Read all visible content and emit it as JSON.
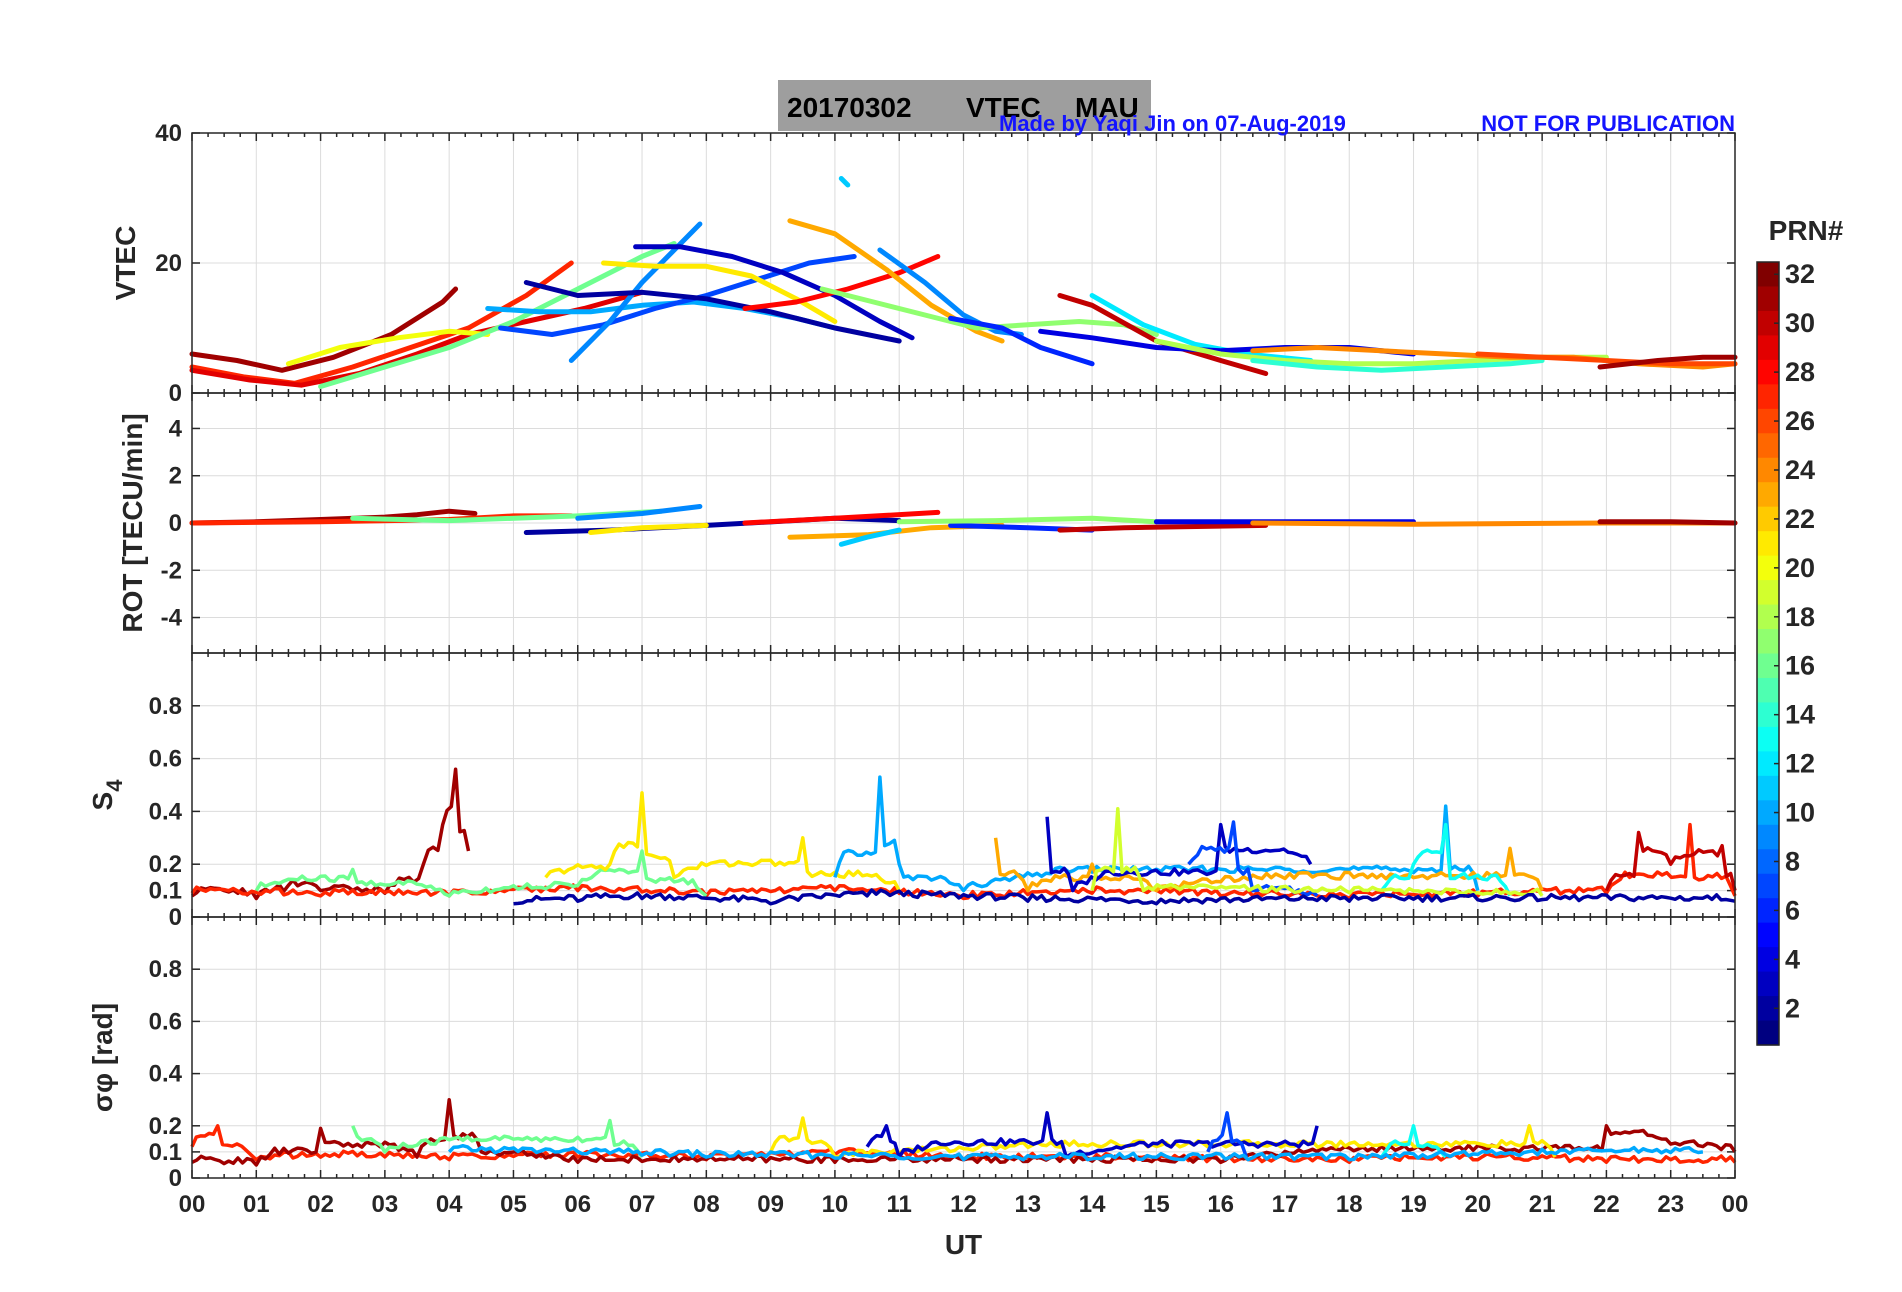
{
  "header": {
    "date": "20170302",
    "product": "VTEC",
    "station": "MAU",
    "credit": "Made by Yaqi Jin on 07-Aug-2019",
    "notice": "NOT FOR PUBLICATION",
    "box_color": "#9e9e9e"
  },
  "colorbar": {
    "title": "PRN#",
    "ticks": [
      "2",
      "4",
      "6",
      "8",
      "10",
      "12",
      "14",
      "16",
      "18",
      "20",
      "22",
      "24",
      "26",
      "28",
      "30",
      "32"
    ],
    "range": [
      1,
      32
    ],
    "colormap": "jet"
  },
  "chart_data": [
    {
      "type": "line",
      "panel": "vtec",
      "ylabel": "VTEC",
      "ylim": [
        0,
        40
      ],
      "yticks": [
        "0",
        "20",
        "40"
      ],
      "yticks_values": [
        0,
        20,
        40
      ],
      "series": [
        {
          "prn": 31,
          "x": [
            0,
            0.7,
            1.4,
            2.2,
            3.1,
            3.9,
            4.1
          ],
          "y": [
            6,
            5,
            3.5,
            5.5,
            9,
            14,
            16
          ]
        },
        {
          "prn": 27,
          "x": [
            0,
            0.8,
            1.6,
            2.5,
            3.4,
            4.3,
            5.2,
            5.9
          ],
          "y": [
            4,
            2.5,
            1.5,
            4,
            7,
            10,
            15,
            20
          ]
        },
        {
          "prn": 29,
          "x": [
            0,
            0.9,
            1.7,
            2.6,
            3.5,
            4.3,
            5.2,
            6.1,
            7.0
          ],
          "y": [
            3.5,
            2,
            1.2,
            3,
            6,
            9,
            11,
            13,
            15.5
          ]
        },
        {
          "prn": 20,
          "x": [
            1.5,
            2.3,
            3.2,
            4.0,
            4.6
          ],
          "y": [
            4.5,
            7,
            8.5,
            9.5,
            9
          ]
        },
        {
          "prn": 16,
          "x": [
            2.0,
            3.0,
            4.0,
            5.0,
            6.0,
            7.0,
            7.5
          ],
          "y": [
            1,
            4,
            7,
            11,
            16,
            21,
            23
          ]
        },
        {
          "prn": 10,
          "x": [
            4.6,
            5.4,
            6.2,
            7.0,
            7.8,
            8.6,
            9.4,
            10.0
          ],
          "y": [
            13,
            12.5,
            12.5,
            13.5,
            14,
            13,
            11.5,
            10
          ]
        },
        {
          "prn": 7,
          "x": [
            4.8,
            5.6,
            6.4,
            7.2,
            8.0,
            8.8,
            9.6,
            10.3
          ],
          "y": [
            10,
            9,
            10.5,
            13,
            15,
            17.5,
            20,
            21
          ]
        },
        {
          "prn": 9,
          "x": [
            5.9,
            6.5,
            7.0,
            7.5,
            7.9
          ],
          "y": [
            5,
            11,
            17,
            22,
            26
          ]
        },
        {
          "prn": 2,
          "x": [
            5.2,
            6.0,
            7.0,
            8.0,
            9.0,
            10.0,
            11.0
          ],
          "y": [
            17,
            15,
            15.5,
            14.5,
            12.5,
            10,
            8
          ]
        },
        {
          "prn": 3,
          "x": [
            6.9,
            7.6,
            8.4,
            9.2,
            10.0,
            10.7,
            11.2
          ],
          "y": [
            22.5,
            22.5,
            21,
            18.5,
            15,
            11,
            8.5
          ]
        },
        {
          "prn": 21,
          "x": [
            6.4,
            7.2,
            8.0,
            8.7,
            9.4,
            10.0
          ],
          "y": [
            20,
            19.5,
            19.5,
            18,
            14.5,
            11
          ]
        },
        {
          "prn": 28,
          "x": [
            8.6,
            9.4,
            10.2,
            11.0,
            11.6
          ],
          "y": [
            13,
            14,
            16,
            18.5,
            21
          ]
        },
        {
          "prn": 23,
          "x": [
            9.3,
            10.0,
            10.8,
            11.5,
            12.2,
            12.6
          ],
          "y": [
            26.5,
            24.5,
            19,
            13.5,
            9.5,
            8
          ]
        },
        {
          "prn": 11,
          "x": [
            10.1,
            10.2
          ],
          "y": [
            33,
            32
          ]
        },
        {
          "prn": 9,
          "x": [
            10.7,
            11.4,
            12.0,
            12.5,
            12.9
          ],
          "y": [
            22,
            17,
            12,
            9.5,
            9
          ]
        },
        {
          "prn": 17,
          "x": [
            9.8,
            10.6,
            11.4,
            12.2,
            13.0,
            13.8,
            14.5,
            15.0
          ],
          "y": [
            16,
            14,
            12,
            10,
            10.5,
            11,
            10.5,
            9
          ]
        },
        {
          "prn": 6,
          "x": [
            11.8,
            12.6,
            13.2,
            14.0
          ],
          "y": [
            11.5,
            10,
            7,
            4.5
          ]
        },
        {
          "prn": 12,
          "x": [
            14.0,
            14.8,
            15.6,
            16.4,
            17.4
          ],
          "y": [
            15,
            10.5,
            7.5,
            6,
            5
          ]
        },
        {
          "prn": 30,
          "x": [
            13.5,
            14.0,
            15.0,
            16.0,
            16.7
          ],
          "y": [
            15,
            13.5,
            8,
            5,
            3
          ]
        },
        {
          "prn": 4,
          "x": [
            13.2,
            14.0,
            15.0,
            16.0,
            17.0,
            18.0,
            19.0
          ],
          "y": [
            9.5,
            8.5,
            7,
            6.5,
            7,
            7,
            6
          ]
        },
        {
          "prn": 18,
          "x": [
            15.0,
            16.0,
            17.0,
            18.0,
            19.0,
            20.0,
            21.0,
            22.0
          ],
          "y": [
            8,
            6,
            5,
            4.5,
            4.5,
            5,
            5.5,
            5.5
          ]
        },
        {
          "prn": 14,
          "x": [
            16.5,
            17.5,
            18.5,
            19.5,
            20.5,
            21.0
          ],
          "y": [
            5,
            4,
            3.5,
            4,
            4.5,
            5
          ]
        },
        {
          "prn": 24,
          "x": [
            16.5,
            17.5,
            18.5,
            19.5,
            20.5,
            21.5,
            22.5,
            23.5,
            24.0
          ],
          "y": [
            6.5,
            7,
            6.5,
            6,
            5.5,
            5.5,
            4.5,
            4,
            4.5
          ]
        },
        {
          "prn": 26,
          "x": [
            20.0,
            21.0,
            22.0,
            23.0,
            24.0
          ],
          "y": [
            6,
            5.5,
            5,
            4.5,
            4.5
          ]
        },
        {
          "prn": 31,
          "x": [
            21.9,
            22.8,
            23.5,
            24.0
          ],
          "y": [
            4,
            5,
            5.5,
            5.5
          ]
        }
      ]
    },
    {
      "type": "line",
      "panel": "rot",
      "ylabel": "ROT [TECU/min]",
      "ylim": [
        -5.5,
        5.5
      ],
      "yticks": [
        "-4",
        "-2",
        "0",
        "2",
        "4"
      ],
      "yticks_values": [
        -4,
        -2,
        0,
        2,
        4
      ],
      "series": [
        {
          "prn": 31,
          "x": [
            0,
            1,
            2,
            3,
            3.5,
            4.0,
            4.4
          ],
          "y": [
            0,
            0.05,
            0.15,
            0.25,
            0.35,
            0.5,
            0.4
          ]
        },
        {
          "prn": 27,
          "x": [
            0,
            2,
            4,
            5,
            5.9
          ],
          "y": [
            0,
            0.05,
            0.15,
            0.3,
            0.3
          ]
        },
        {
          "prn": 16,
          "x": [
            2.5,
            4,
            6,
            7.3
          ],
          "y": [
            0.2,
            0.1,
            0.3,
            0.5
          ]
        },
        {
          "prn": 9,
          "x": [
            6,
            7,
            7.9
          ],
          "y": [
            0.2,
            0.4,
            0.7
          ]
        },
        {
          "prn": 2,
          "x": [
            5.2,
            6.5,
            8,
            10,
            11
          ],
          "y": [
            -0.4,
            -0.3,
            -0.1,
            0.2,
            0.1
          ]
        },
        {
          "prn": 21,
          "x": [
            6.2,
            7,
            8
          ],
          "y": [
            -0.4,
            -0.2,
            -0.1
          ]
        },
        {
          "prn": 28,
          "x": [
            8.6,
            10,
            11.6
          ],
          "y": [
            0.0,
            0.2,
            0.45
          ]
        },
        {
          "prn": 23,
          "x": [
            9.3,
            10.5,
            11.5,
            12.6
          ],
          "y": [
            -0.6,
            -0.5,
            -0.2,
            -0.1
          ]
        },
        {
          "prn": 11,
          "x": [
            10.1,
            10.5,
            11
          ],
          "y": [
            -0.9,
            -0.6,
            -0.3
          ]
        },
        {
          "prn": 6,
          "x": [
            11.8,
            13,
            14
          ],
          "y": [
            -0.1,
            -0.2,
            -0.3
          ]
        },
        {
          "prn": 30,
          "x": [
            13.5,
            14.5,
            16.7
          ],
          "y": [
            -0.3,
            -0.2,
            -0.1
          ]
        },
        {
          "prn": 17,
          "x": [
            11,
            12.5,
            14,
            15
          ],
          "y": [
            0.05,
            0.1,
            0.2,
            0.05
          ]
        },
        {
          "prn": 4,
          "x": [
            15,
            17,
            19
          ],
          "y": [
            0.05,
            0.05,
            0.05
          ]
        },
        {
          "prn": 24,
          "x": [
            16.5,
            19,
            22,
            24
          ],
          "y": [
            0,
            -0.05,
            0,
            0
          ]
        },
        {
          "prn": 31,
          "x": [
            21.9,
            23,
            24
          ],
          "y": [
            0.05,
            0.05,
            0
          ]
        }
      ]
    },
    {
      "type": "line",
      "panel": "s4",
      "ylabel": "S4",
      "ylim": [
        0,
        1
      ],
      "yticks": [
        "0",
        "0.1",
        "0.2",
        "0.4",
        "0.6",
        "0.8"
      ],
      "yticks_values": [
        0,
        0.1,
        0.2,
        0.4,
        0.6,
        0.8
      ],
      "series": [
        {
          "prn": 31,
          "x": [
            0,
            0.5,
            1,
            1.5,
            2,
            3,
            3.6,
            3.9,
            4.1,
            4.3
          ],
          "y": [
            0.08,
            0.1,
            0.07,
            0.12,
            0.1,
            0.09,
            0.2,
            0.35,
            0.56,
            0.25
          ]
        },
        {
          "prn": 27,
          "x": [
            0,
            2,
            4,
            6,
            8,
            10,
            12,
            14,
            16,
            18,
            20,
            22,
            23.3,
            24
          ],
          "y": [
            0.09,
            0.08,
            0.08,
            0.1,
            0.08,
            0.1,
            0.07,
            0.09,
            0.08,
            0.07,
            0.08,
            0.09,
            0.35,
            0.08
          ]
        },
        {
          "prn": 16,
          "x": [
            1,
            2.5,
            4,
            6,
            7,
            8
          ],
          "y": [
            0.1,
            0.18,
            0.08,
            0.12,
            0.25,
            0.08
          ]
        },
        {
          "prn": 21,
          "x": [
            5.5,
            6.5,
            7.0,
            7.5,
            9.5,
            11
          ],
          "y": [
            0.15,
            0.2,
            0.47,
            0.15,
            0.3,
            0.1
          ]
        },
        {
          "prn": 10,
          "x": [
            10,
            10.7,
            11,
            12,
            19.5,
            20
          ],
          "y": [
            0.15,
            0.53,
            0.2,
            0.1,
            0.42,
            0.1
          ]
        },
        {
          "prn": 23,
          "x": [
            12.5,
            13,
            14,
            15,
            20.5,
            21
          ],
          "y": [
            0.3,
            0.1,
            0.2,
            0.1,
            0.26,
            0.1
          ]
        },
        {
          "prn": 3,
          "x": [
            13.3,
            13.7,
            16,
            17.4
          ],
          "y": [
            0.38,
            0.1,
            0.35,
            0.2
          ]
        },
        {
          "prn": 7,
          "x": [
            15.5,
            16.2,
            16.5,
            17.5
          ],
          "y": [
            0.2,
            0.36,
            0.1,
            0.08
          ]
        },
        {
          "prn": 13,
          "x": [
            18.5,
            19,
            19.5,
            20.5
          ],
          "y": [
            0.1,
            0.2,
            0.35,
            0.08
          ]
        },
        {
          "prn": 19,
          "x": [
            14,
            14.4,
            14.8,
            21
          ],
          "y": [
            0.1,
            0.41,
            0.1,
            0.08
          ]
        },
        {
          "prn": 30,
          "x": [
            22,
            22.5,
            23,
            23.8,
            24
          ],
          "y": [
            0.1,
            0.32,
            0.2,
            0.27,
            0.1
          ]
        },
        {
          "prn": 2,
          "x": [
            5,
            6,
            7,
            9,
            10.5,
            13,
            15,
            18,
            24
          ],
          "y": [
            0.05,
            0.06,
            0.07,
            0.05,
            0.08,
            0.06,
            0.05,
            0.06,
            0.06
          ]
        }
      ]
    },
    {
      "type": "line",
      "panel": "sigma_phi",
      "ylabel": "σφ [rad]",
      "ylim": [
        0,
        1
      ],
      "yticks": [
        "0",
        "0.1",
        "0.2",
        "0.4",
        "0.6",
        "0.8"
      ],
      "yticks_values": [
        0,
        0.1,
        0.2,
        0.4,
        0.6,
        0.8
      ],
      "series": [
        {
          "prn": 27,
          "x": [
            0,
            0.4,
            1,
            2,
            4,
            6,
            8,
            10,
            12,
            14,
            16,
            18,
            20,
            22,
            24
          ],
          "y": [
            0.12,
            0.2,
            0.07,
            0.08,
            0.07,
            0.08,
            0.07,
            0.09,
            0.07,
            0.07,
            0.06,
            0.06,
            0.07,
            0.06,
            0.06
          ]
        },
        {
          "prn": 31,
          "x": [
            0,
            1,
            2,
            3.5,
            4,
            4.5,
            6,
            10,
            16,
            22,
            23,
            24
          ],
          "y": [
            0.06,
            0.05,
            0.19,
            0.08,
            0.3,
            0.1,
            0.06,
            0.06,
            0.06,
            0.2,
            0.13,
            0.1
          ]
        },
        {
          "prn": 16,
          "x": [
            2.5,
            3,
            6.5,
            7
          ],
          "y": [
            0.2,
            0.1,
            0.22,
            0.08
          ]
        },
        {
          "prn": 21,
          "x": [
            9,
            9.5,
            10,
            20.8,
            21.2
          ],
          "y": [
            0.1,
            0.23,
            0.08,
            0.2,
            0.08
          ]
        },
        {
          "prn": 3,
          "x": [
            10.5,
            10.8,
            11,
            13.3,
            13.6,
            17.5
          ],
          "y": [
            0.12,
            0.2,
            0.08,
            0.25,
            0.08,
            0.2
          ]
        },
        {
          "prn": 7,
          "x": [
            15.8,
            16.1,
            16.4
          ],
          "y": [
            0.1,
            0.25,
            0.08
          ]
        },
        {
          "prn": 13,
          "x": [
            18.5,
            19,
            19.5
          ],
          "y": [
            0.08,
            0.2,
            0.08
          ]
        },
        {
          "prn": 10,
          "x": [
            4,
            8,
            12,
            18,
            23.5
          ],
          "y": [
            0.1,
            0.08,
            0.07,
            0.07,
            0.1
          ]
        }
      ]
    }
  ],
  "xaxis": {
    "label": "UT",
    "xlim": [
      0,
      24
    ],
    "ticks": [
      "00",
      "01",
      "02",
      "03",
      "04",
      "05",
      "06",
      "07",
      "08",
      "09",
      "10",
      "11",
      "12",
      "13",
      "14",
      "15",
      "16",
      "17",
      "18",
      "19",
      "20",
      "21",
      "22",
      "23",
      "00"
    ]
  }
}
